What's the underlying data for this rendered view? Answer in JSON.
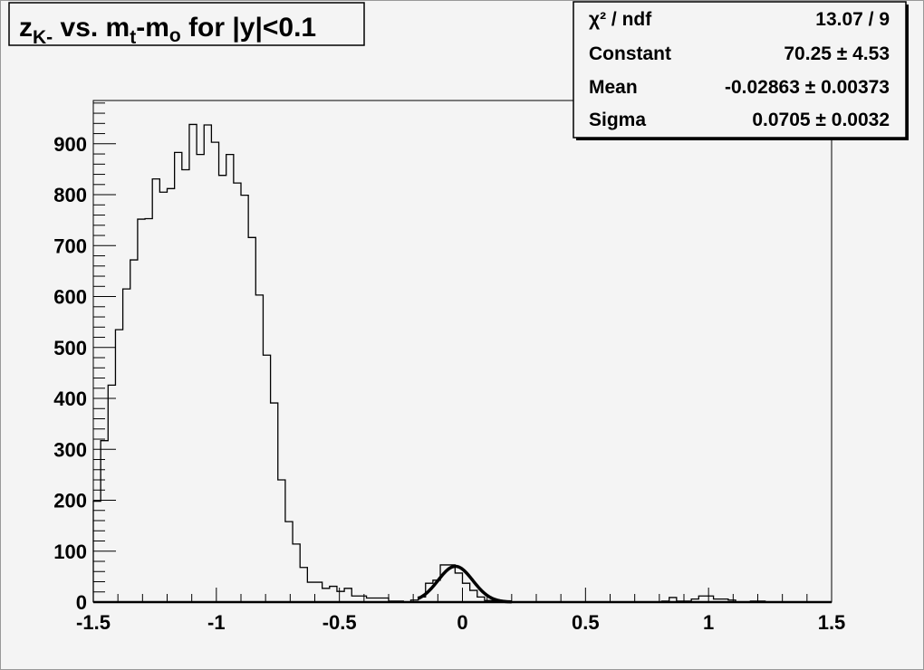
{
  "chart_data": {
    "type": "bar",
    "style": "step-histogram",
    "title_parts": {
      "z": "z",
      "sub_k": "K-",
      "vs": " vs. m",
      "sub_t": "t",
      "dash": "-m",
      "sub_o": "o",
      "rest": " for |y|<0.1"
    },
    "xlim": [
      -1.5,
      1.5
    ],
    "ylim": [
      0,
      985
    ],
    "bin_width": 0.03,
    "x_ticks": [
      -1.5,
      -1,
      -0.5,
      0,
      0.5,
      1,
      1.5
    ],
    "x_tick_labels": [
      "-1.5",
      "-1",
      "-0.5",
      "0",
      "0.5",
      "1",
      "1.5"
    ],
    "y_ticks": [
      0,
      100,
      200,
      300,
      400,
      500,
      600,
      700,
      800,
      900
    ],
    "y_tick_labels": [
      "0",
      "100",
      "200",
      "300",
      "400",
      "500",
      "600",
      "700",
      "800",
      "900"
    ],
    "values": [
      198,
      317,
      426,
      535,
      615,
      672,
      752,
      753,
      831,
      805,
      812,
      883,
      849,
      938,
      879,
      937,
      903,
      838,
      879,
      823,
      799,
      716,
      603,
      485,
      391,
      240,
      158,
      114,
      68,
      39,
      39,
      27,
      31,
      21,
      27,
      12,
      12,
      8,
      8,
      8,
      2,
      2,
      0,
      4,
      10,
      37,
      43,
      73,
      73,
      57,
      37,
      23,
      10,
      3,
      3,
      0,
      0,
      0,
      0,
      0,
      0,
      0,
      0,
      0,
      0,
      0,
      0,
      0,
      0,
      0,
      0,
      0,
      0,
      0,
      0,
      0,
      0,
      2,
      9,
      2,
      2,
      6,
      12,
      12,
      6,
      6,
      4,
      0,
      0,
      2,
      2,
      0,
      0,
      0,
      0,
      0,
      0,
      0,
      0,
      0
    ],
    "fit": {
      "function": "gaus",
      "constant": 70.25,
      "mean": -0.02863,
      "sigma": 0.0705,
      "range": [
        -0.18,
        0.2
      ]
    },
    "grid": false,
    "line_color": "#000000",
    "background": "#f4f4f4"
  },
  "stats": {
    "rows": [
      {
        "label": "χ² / ndf",
        "value": "13.07 / 9"
      },
      {
        "label": "Constant",
        "value": "70.25 ± 4.53"
      },
      {
        "label": "Mean",
        "value": "-0.02863 ± 0.00373"
      },
      {
        "label": "Sigma",
        "value": "0.0705 ± 0.0032"
      }
    ]
  }
}
